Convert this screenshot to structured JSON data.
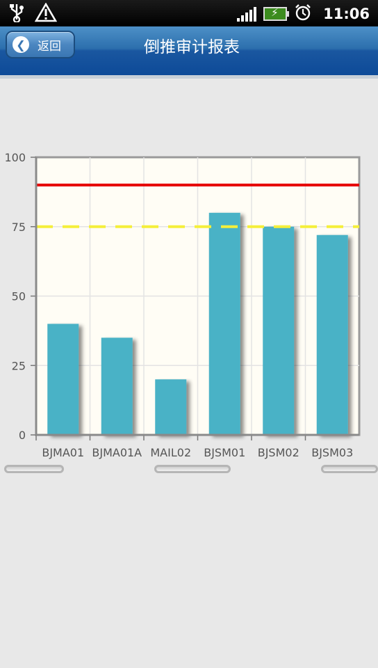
{
  "status_bar": {
    "time": "11:06",
    "icons": [
      "usb-icon",
      "warning-icon",
      "signal-icon",
      "battery-charging-icon",
      "alarm-icon"
    ]
  },
  "header": {
    "back_label": "返回",
    "title": "倒推审计报表"
  },
  "colors": {
    "bar": "#4ab2c6",
    "plot_bg": "#fffdf5",
    "threshold_red": "#e60000",
    "threshold_yellow": "#f5ef3a"
  },
  "chart_data": {
    "type": "bar",
    "categories": [
      "BJMA01",
      "BJMA01A",
      "MAIL02",
      "BJSM01",
      "BJSM02",
      "BJSM03"
    ],
    "values": [
      40,
      35,
      20,
      80,
      75,
      72
    ],
    "ylim": [
      0,
      100
    ],
    "yticks": [
      "0",
      "25",
      "50",
      "75",
      "100"
    ],
    "ytick_values": [
      0,
      25,
      50,
      75,
      100
    ],
    "reference_lines": [
      {
        "value": 90,
        "color": "#e60000",
        "style": "solid"
      },
      {
        "value": 75,
        "color": "#f5ef3a",
        "style": "dashed"
      }
    ],
    "grid": true,
    "title": "",
    "xlabel": "",
    "ylabel": ""
  }
}
